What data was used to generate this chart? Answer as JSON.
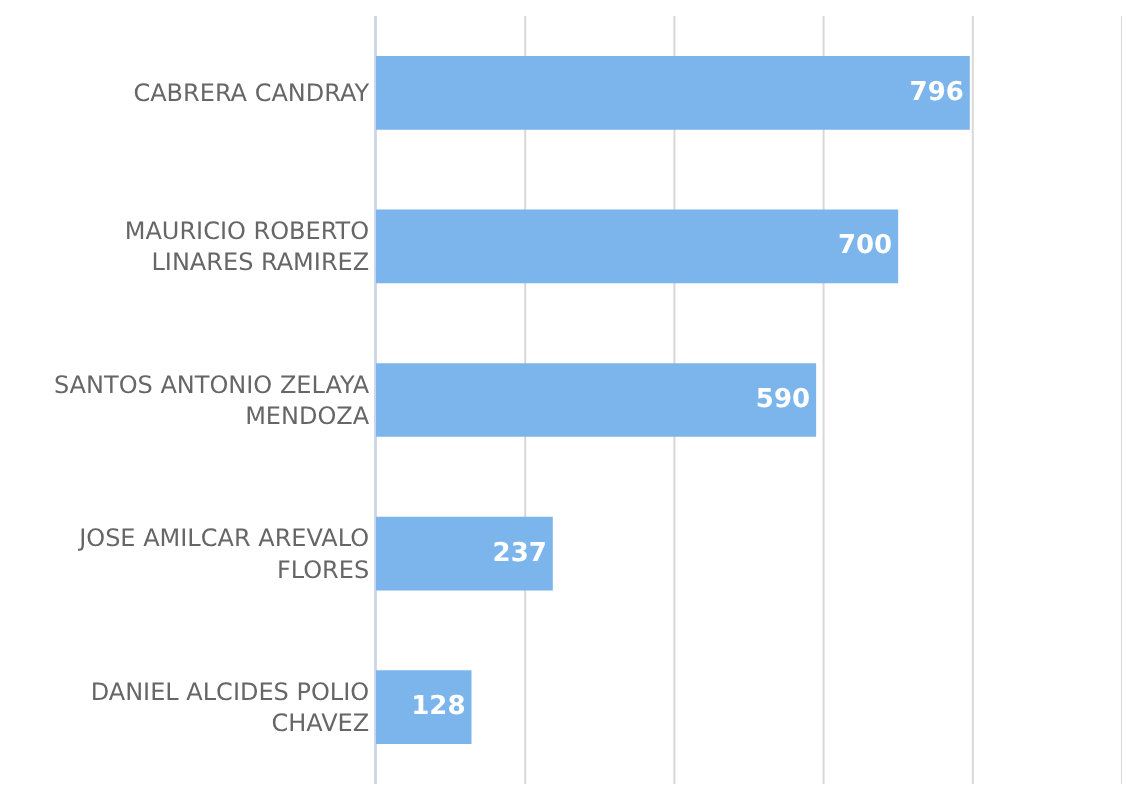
{
  "chart_data": {
    "type": "bar",
    "orientation": "horizontal",
    "categories": [
      "CABRERA CANDRAY",
      "MAURICIO ROBERTO LINARES RAMIREZ",
      "SANTOS ANTONIO ZELAYA MENDOZA",
      "JOSE AMILCAR AREVALO FLORES",
      "DANIEL ALCIDES POLIO CHAVEZ"
    ],
    "values": [
      796,
      700,
      590,
      237,
      128
    ],
    "color": "#7cb5ec",
    "xlim": [
      0,
      1000
    ],
    "xticks": [
      {
        "value": 0,
        "label": null
      },
      {
        "value": 200,
        "label": null
      },
      {
        "value": 400,
        "label": null
      },
      {
        "value": 600,
        "label": null
      },
      {
        "value": 800,
        "label": null
      },
      {
        "value": 1000,
        "label": null
      }
    ],
    "grid": "x",
    "data_labels": true,
    "tick_labels": "y",
    "legend": false
  }
}
